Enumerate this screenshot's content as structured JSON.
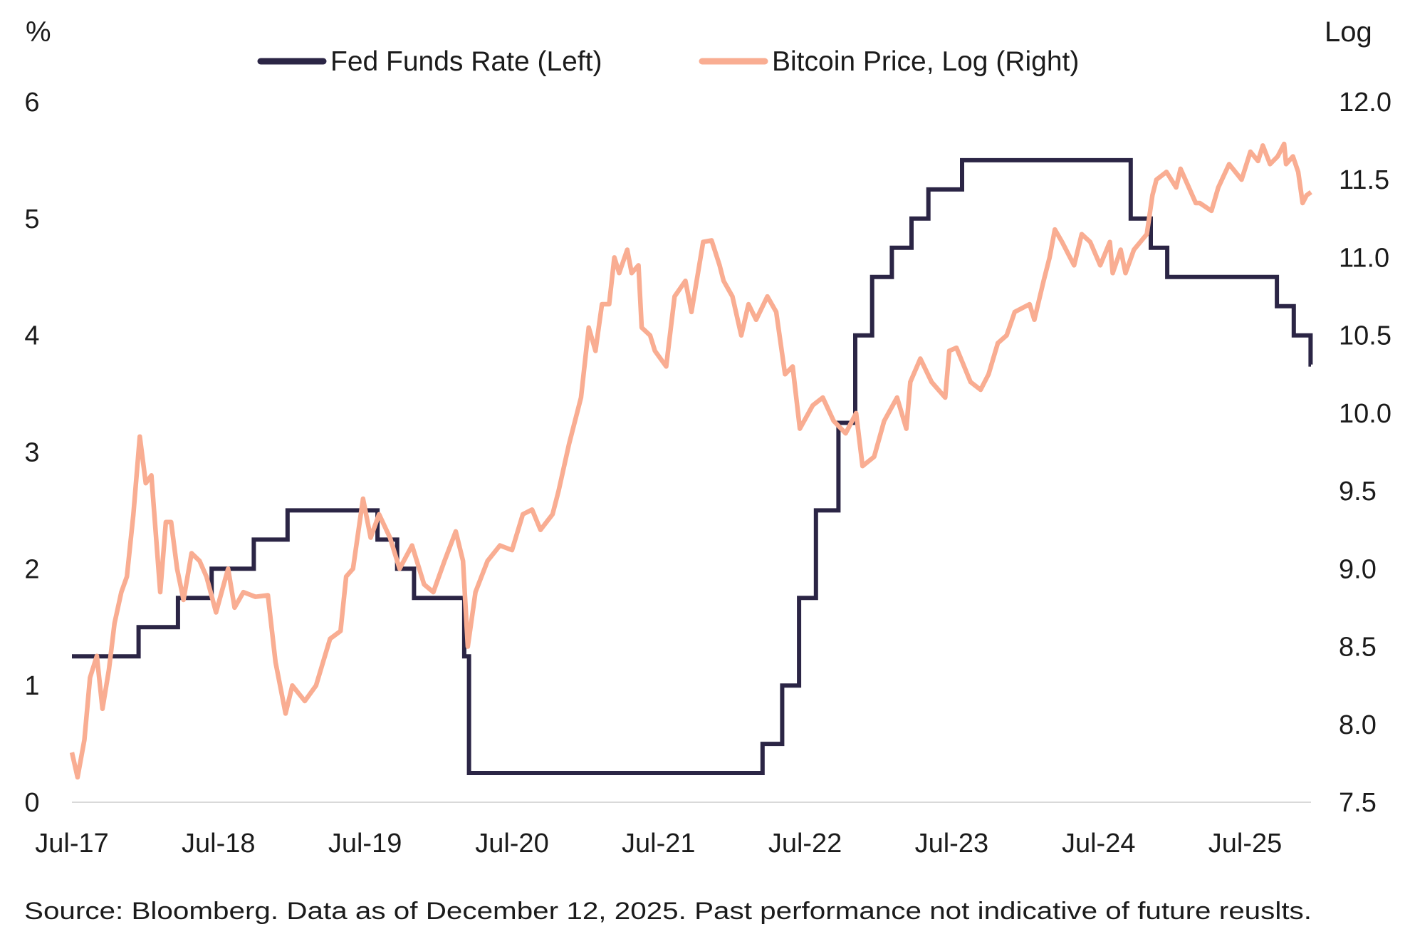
{
  "chart_data": {
    "type": "line",
    "title": "",
    "left_axis": {
      "label": "%",
      "ylim": [
        0,
        6
      ],
      "ticks": [
        "0",
        "1",
        "2",
        "3",
        "4",
        "5",
        "6"
      ]
    },
    "right_axis": {
      "label": "Log",
      "ylim": [
        7.5,
        12.0
      ],
      "ticks": [
        "7.5",
        "8.0",
        "8.5",
        "9.0",
        "9.5",
        "10.0",
        "10.5",
        "11.0",
        "11.5",
        "12.0"
      ]
    },
    "x_axis": {
      "range": [
        "2017-07-01",
        "2025-12-12"
      ],
      "ticks": [
        {
          "date": "2017-07-01",
          "label": "Jul-17"
        },
        {
          "date": "2018-07-01",
          "label": "Jul-18"
        },
        {
          "date": "2019-07-01",
          "label": "Jul-19"
        },
        {
          "date": "2020-07-01",
          "label": "Jul-20"
        },
        {
          "date": "2021-07-01",
          "label": "Jul-21"
        },
        {
          "date": "2022-07-01",
          "label": "Jul-22"
        },
        {
          "date": "2023-07-01",
          "label": "Jul-23"
        },
        {
          "date": "2024-07-01",
          "label": "Jul-24"
        },
        {
          "date": "2025-07-01",
          "label": "Jul-25"
        }
      ]
    },
    "grid": false,
    "legend_position": "top",
    "series": [
      {
        "name": "Fed Funds Rate (Left)",
        "axis": "left",
        "color": "#2b2545",
        "step": true,
        "points": [
          [
            "2017-07-01",
            1.25
          ],
          [
            "2017-12-14",
            1.5
          ],
          [
            "2018-03-22",
            1.75
          ],
          [
            "2018-06-14",
            2.0
          ],
          [
            "2018-09-27",
            2.25
          ],
          [
            "2018-12-20",
            2.5
          ],
          [
            "2019-08-01",
            2.25
          ],
          [
            "2019-09-19",
            2.0
          ],
          [
            "2019-10-31",
            1.75
          ],
          [
            "2020-03-04",
            1.25
          ],
          [
            "2020-03-16",
            0.25
          ],
          [
            "2022-03-17",
            0.5
          ],
          [
            "2022-05-05",
            1.0
          ],
          [
            "2022-06-16",
            1.75
          ],
          [
            "2022-07-28",
            2.5
          ],
          [
            "2022-09-22",
            3.25
          ],
          [
            "2022-11-03",
            4.0
          ],
          [
            "2022-12-15",
            4.5
          ],
          [
            "2023-02-02",
            4.75
          ],
          [
            "2023-03-23",
            5.0
          ],
          [
            "2023-05-04",
            5.25
          ],
          [
            "2023-07-27",
            5.5
          ],
          [
            "2024-09-19",
            5.0
          ],
          [
            "2024-11-08",
            4.75
          ],
          [
            "2024-12-19",
            4.5
          ],
          [
            "2025-09-18",
            4.25
          ],
          [
            "2025-10-30",
            4.0
          ],
          [
            "2025-12-11",
            3.75
          ],
          [
            "2025-12-12",
            3.75
          ]
        ]
      },
      {
        "name": "Bitcoin Price, Log (Right)",
        "axis": "right",
        "color": "#f9ad92",
        "step": false,
        "points": [
          [
            "2017-07-01",
            7.82
          ],
          [
            "2017-07-15",
            7.66
          ],
          [
            "2017-08-01",
            7.9
          ],
          [
            "2017-08-15",
            8.3
          ],
          [
            "2017-09-01",
            8.44
          ],
          [
            "2017-09-15",
            8.1
          ],
          [
            "2017-10-01",
            8.35
          ],
          [
            "2017-10-15",
            8.65
          ],
          [
            "2017-11-01",
            8.85
          ],
          [
            "2017-11-15",
            8.95
          ],
          [
            "2017-12-01",
            9.35
          ],
          [
            "2017-12-17",
            9.85
          ],
          [
            "2018-01-01",
            9.55
          ],
          [
            "2018-01-15",
            9.6
          ],
          [
            "2018-02-06",
            8.85
          ],
          [
            "2018-02-20",
            9.3
          ],
          [
            "2018-03-05",
            9.3
          ],
          [
            "2018-03-20",
            9.0
          ],
          [
            "2018-04-05",
            8.8
          ],
          [
            "2018-04-25",
            9.1
          ],
          [
            "2018-05-15",
            9.05
          ],
          [
            "2018-06-01",
            8.95
          ],
          [
            "2018-06-25",
            8.72
          ],
          [
            "2018-07-25",
            9.0
          ],
          [
            "2018-08-10",
            8.75
          ],
          [
            "2018-09-01",
            8.85
          ],
          [
            "2018-10-01",
            8.82
          ],
          [
            "2018-11-01",
            8.83
          ],
          [
            "2018-11-20",
            8.4
          ],
          [
            "2018-12-15",
            8.07
          ],
          [
            "2019-01-01",
            8.25
          ],
          [
            "2019-02-01",
            8.15
          ],
          [
            "2019-03-01",
            8.25
          ],
          [
            "2019-04-05",
            8.55
          ],
          [
            "2019-05-01",
            8.6
          ],
          [
            "2019-05-15",
            8.95
          ],
          [
            "2019-06-01",
            9.0
          ],
          [
            "2019-06-26",
            9.45
          ],
          [
            "2019-07-15",
            9.2
          ],
          [
            "2019-08-05",
            9.35
          ],
          [
            "2019-09-01",
            9.2
          ],
          [
            "2019-09-25",
            9.0
          ],
          [
            "2019-10-26",
            9.15
          ],
          [
            "2019-11-25",
            8.9
          ],
          [
            "2019-12-18",
            8.85
          ],
          [
            "2020-01-15",
            9.05
          ],
          [
            "2020-02-12",
            9.24
          ],
          [
            "2020-03-01",
            9.05
          ],
          [
            "2020-03-13",
            8.5
          ],
          [
            "2020-04-01",
            8.85
          ],
          [
            "2020-05-01",
            9.05
          ],
          [
            "2020-06-01",
            9.15
          ],
          [
            "2020-07-01",
            9.12
          ],
          [
            "2020-07-28",
            9.35
          ],
          [
            "2020-08-20",
            9.38
          ],
          [
            "2020-09-10",
            9.25
          ],
          [
            "2020-10-10",
            9.35
          ],
          [
            "2020-10-25",
            9.5
          ],
          [
            "2020-11-20",
            9.8
          ],
          [
            "2020-12-20",
            10.1
          ],
          [
            "2021-01-08",
            10.55
          ],
          [
            "2021-01-25",
            10.4
          ],
          [
            "2021-02-10",
            10.7
          ],
          [
            "2021-02-28",
            10.7
          ],
          [
            "2021-03-13",
            11.0
          ],
          [
            "2021-03-25",
            10.9
          ],
          [
            "2021-04-14",
            11.05
          ],
          [
            "2021-04-25",
            10.9
          ],
          [
            "2021-05-12",
            10.95
          ],
          [
            "2021-05-20",
            10.55
          ],
          [
            "2021-06-10",
            10.5
          ],
          [
            "2021-06-22",
            10.4
          ],
          [
            "2021-07-20",
            10.3
          ],
          [
            "2021-08-10",
            10.75
          ],
          [
            "2021-09-06",
            10.85
          ],
          [
            "2021-09-21",
            10.65
          ],
          [
            "2021-10-20",
            11.1
          ],
          [
            "2021-11-10",
            11.11
          ],
          [
            "2021-11-30",
            10.95
          ],
          [
            "2021-12-10",
            10.85
          ],
          [
            "2022-01-01",
            10.75
          ],
          [
            "2022-01-23",
            10.5
          ],
          [
            "2022-02-10",
            10.7
          ],
          [
            "2022-03-01",
            10.6
          ],
          [
            "2022-03-29",
            10.75
          ],
          [
            "2022-04-20",
            10.65
          ],
          [
            "2022-05-12",
            10.25
          ],
          [
            "2022-05-31",
            10.3
          ],
          [
            "2022-06-18",
            9.9
          ],
          [
            "2022-07-20",
            10.05
          ],
          [
            "2022-08-14",
            10.1
          ],
          [
            "2022-09-10",
            9.95
          ],
          [
            "2022-10-10",
            9.87
          ],
          [
            "2022-11-05",
            10.0
          ],
          [
            "2022-11-21",
            9.66
          ],
          [
            "2022-12-20",
            9.72
          ],
          [
            "2023-01-14",
            9.95
          ],
          [
            "2023-02-15",
            10.1
          ],
          [
            "2023-03-10",
            9.9
          ],
          [
            "2023-03-20",
            10.2
          ],
          [
            "2023-04-14",
            10.35
          ],
          [
            "2023-05-12",
            10.2
          ],
          [
            "2023-06-15",
            10.1
          ],
          [
            "2023-06-25",
            10.4
          ],
          [
            "2023-07-13",
            10.42
          ],
          [
            "2023-08-17",
            10.2
          ],
          [
            "2023-09-11",
            10.15
          ],
          [
            "2023-10-01",
            10.25
          ],
          [
            "2023-10-24",
            10.45
          ],
          [
            "2023-11-15",
            10.5
          ],
          [
            "2023-12-05",
            10.65
          ],
          [
            "2024-01-11",
            10.7
          ],
          [
            "2024-01-23",
            10.6
          ],
          [
            "2024-02-15",
            10.85
          ],
          [
            "2024-03-01",
            11.0
          ],
          [
            "2024-03-14",
            11.18
          ],
          [
            "2024-04-01",
            11.1
          ],
          [
            "2024-05-01",
            10.95
          ],
          [
            "2024-05-20",
            11.15
          ],
          [
            "2024-06-10",
            11.1
          ],
          [
            "2024-07-05",
            10.95
          ],
          [
            "2024-07-29",
            11.1
          ],
          [
            "2024-08-05",
            10.9
          ],
          [
            "2024-08-25",
            11.05
          ],
          [
            "2024-09-06",
            10.9
          ],
          [
            "2024-09-27",
            11.05
          ],
          [
            "2024-10-29",
            11.15
          ],
          [
            "2024-11-12",
            11.4
          ],
          [
            "2024-11-22",
            11.5
          ],
          [
            "2024-12-17",
            11.55
          ],
          [
            "2025-01-10",
            11.45
          ],
          [
            "2025-01-21",
            11.57
          ],
          [
            "2025-02-28",
            11.35
          ],
          [
            "2025-03-10",
            11.35
          ],
          [
            "2025-04-08",
            11.3
          ],
          [
            "2025-04-25",
            11.45
          ],
          [
            "2025-05-22",
            11.6
          ],
          [
            "2025-06-22",
            11.5
          ],
          [
            "2025-07-14",
            11.68
          ],
          [
            "2025-08-02",
            11.62
          ],
          [
            "2025-08-14",
            11.72
          ],
          [
            "2025-09-01",
            11.6
          ],
          [
            "2025-09-20",
            11.65
          ],
          [
            "2025-10-06",
            11.73
          ],
          [
            "2025-10-11",
            11.6
          ],
          [
            "2025-10-28",
            11.65
          ],
          [
            "2025-11-10",
            11.55
          ],
          [
            "2025-11-21",
            11.35
          ],
          [
            "2025-12-01",
            11.4
          ],
          [
            "2025-12-12",
            11.42
          ]
        ]
      }
    ],
    "source": "Source: Bloomberg. Data as of December 12, 2025. Past performance not indicative of future reuslts."
  }
}
